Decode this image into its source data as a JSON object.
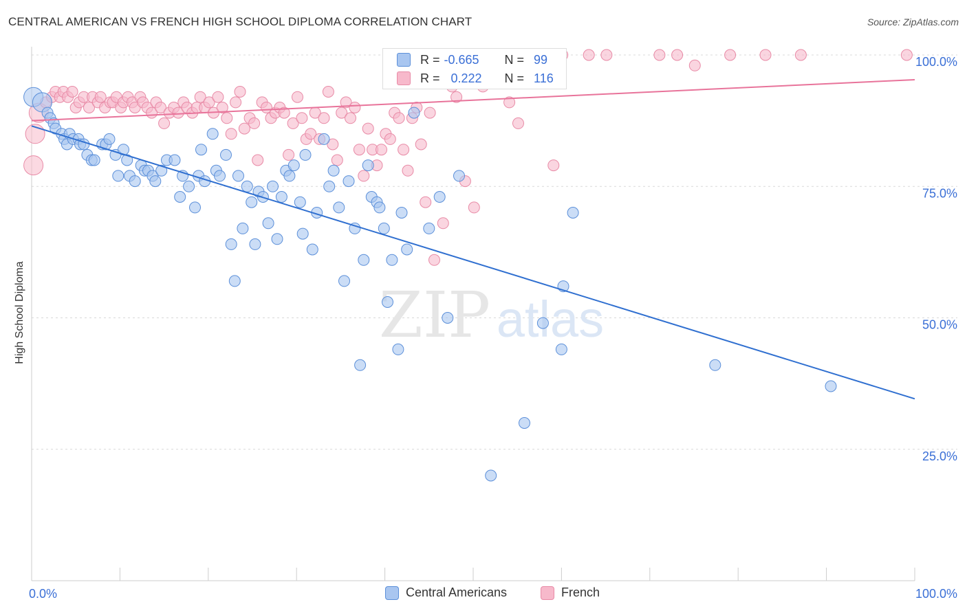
{
  "title": "CENTRAL AMERICAN VS FRENCH HIGH SCHOOL DIPLOMA CORRELATION CHART",
  "source": "Source: ZipAtlas.com",
  "watermark": {
    "zip": "ZIP",
    "atlas": "atlas"
  },
  "colors": {
    "blue_fill": "#a9c6f0",
    "blue_stroke": "#5b8fd9",
    "blue_line": "#2f6fd0",
    "pink_fill": "#f7b9cb",
    "pink_stroke": "#e88aa6",
    "pink_line": "#e8739a",
    "tick_label": "#3a6fd6",
    "grid": "#d8d8d8"
  },
  "stats": {
    "r_label": "R =",
    "n_label": "N =",
    "rows": [
      {
        "series": "Central Americans",
        "r": "-0.665",
        "n": "99"
      },
      {
        "series": "French",
        "r": "0.222",
        "n": "116"
      }
    ]
  },
  "legend": {
    "items": [
      "Central Americans",
      "French"
    ]
  },
  "chart_data": {
    "type": "scatter",
    "title": "CENTRAL AMERICAN VS FRENCH HIGH SCHOOL DIPLOMA CORRELATION CHART",
    "xlabel": "",
    "ylabel": "High School Diploma",
    "xlim": [
      0,
      100
    ],
    "ylim": [
      0,
      105
    ],
    "x_tick_labels": [
      "0.0%",
      "100.0%"
    ],
    "y_ticks": [
      25,
      50,
      75,
      100
    ],
    "y_tick_labels": [
      "25.0%",
      "50.0%",
      "75.0%",
      "100.0%"
    ],
    "grid": true,
    "legend_position": "bottom",
    "series": [
      {
        "name": "Central Americans",
        "r": -0.665,
        "n": 99,
        "trend": {
          "x": [
            0,
            100
          ],
          "y": [
            86.5,
            34.6
          ]
        },
        "points": [
          [
            0.2,
            92
          ],
          [
            1.2,
            91
          ],
          [
            1.8,
            89
          ],
          [
            2.1,
            88
          ],
          [
            2.5,
            87
          ],
          [
            2.7,
            86
          ],
          [
            3.4,
            85
          ],
          [
            3.7,
            84
          ],
          [
            4,
            83
          ],
          [
            4.3,
            85
          ],
          [
            4.7,
            84
          ],
          [
            5.3,
            84
          ],
          [
            5.5,
            83
          ],
          [
            5.9,
            83
          ],
          [
            6.3,
            81
          ],
          [
            6.8,
            80
          ],
          [
            7.1,
            80
          ],
          [
            8,
            83
          ],
          [
            8.4,
            83
          ],
          [
            8.8,
            84
          ],
          [
            9.5,
            81
          ],
          [
            9.8,
            77
          ],
          [
            10.4,
            82
          ],
          [
            10.8,
            80
          ],
          [
            11.1,
            77
          ],
          [
            11.7,
            76
          ],
          [
            12.4,
            79
          ],
          [
            12.8,
            78
          ],
          [
            13.2,
            78
          ],
          [
            13.7,
            77
          ],
          [
            14,
            76
          ],
          [
            14.7,
            78
          ],
          [
            15.3,
            80
          ],
          [
            16.2,
            80
          ],
          [
            16.8,
            73
          ],
          [
            17.1,
            77
          ],
          [
            17.8,
            75
          ],
          [
            18.5,
            71
          ],
          [
            18.9,
            77
          ],
          [
            19.2,
            82
          ],
          [
            19.6,
            76
          ],
          [
            20.5,
            85
          ],
          [
            20.9,
            78
          ],
          [
            21.3,
            77
          ],
          [
            22,
            81
          ],
          [
            22.6,
            64
          ],
          [
            23,
            57
          ],
          [
            23.4,
            77
          ],
          [
            23.9,
            67
          ],
          [
            24.4,
            75
          ],
          [
            24.9,
            72
          ],
          [
            25.3,
            64
          ],
          [
            25.7,
            74
          ],
          [
            26.2,
            73
          ],
          [
            26.8,
            68
          ],
          [
            27.3,
            75
          ],
          [
            27.8,
            65
          ],
          [
            28.3,
            73
          ],
          [
            28.8,
            78
          ],
          [
            29.2,
            77
          ],
          [
            29.7,
            79
          ],
          [
            30.4,
            72
          ],
          [
            30.7,
            66
          ],
          [
            31,
            81
          ],
          [
            31.8,
            63
          ],
          [
            32.3,
            70
          ],
          [
            33.1,
            84
          ],
          [
            33.7,
            75
          ],
          [
            34.2,
            78
          ],
          [
            34.8,
            71
          ],
          [
            35.4,
            57
          ],
          [
            35.9,
            76
          ],
          [
            36.6,
            67
          ],
          [
            37.2,
            41
          ],
          [
            37.6,
            61
          ],
          [
            38.1,
            79
          ],
          [
            38.5,
            73
          ],
          [
            39.1,
            72
          ],
          [
            39.4,
            71
          ],
          [
            39.9,
            67
          ],
          [
            40.3,
            53
          ],
          [
            40.8,
            61
          ],
          [
            41.5,
            44
          ],
          [
            41.9,
            70
          ],
          [
            42.5,
            63
          ],
          [
            43,
            96
          ],
          [
            43.3,
            89
          ],
          [
            45,
            67
          ],
          [
            46.2,
            73
          ],
          [
            47.1,
            50
          ],
          [
            48.4,
            77
          ],
          [
            52,
            20
          ],
          [
            55.8,
            30
          ],
          [
            57.9,
            49
          ],
          [
            60,
            44
          ],
          [
            60.2,
            56
          ],
          [
            61.3,
            70
          ],
          [
            77.4,
            41
          ],
          [
            90.5,
            37
          ]
        ]
      },
      {
        "name": "French",
        "r": 0.222,
        "n": 116,
        "trend": {
          "x": [
            0,
            100
          ],
          "y": [
            87.5,
            95.3
          ]
        },
        "points": [
          [
            0.2,
            79
          ],
          [
            0.4,
            85
          ],
          [
            0.8,
            89
          ],
          [
            1.6,
            91
          ],
          [
            2.3,
            92
          ],
          [
            2.7,
            93
          ],
          [
            3.2,
            92
          ],
          [
            3.6,
            93
          ],
          [
            4.1,
            92
          ],
          [
            4.6,
            93
          ],
          [
            5,
            90
          ],
          [
            5.4,
            91
          ],
          [
            5.9,
            92
          ],
          [
            6.5,
            90
          ],
          [
            6.9,
            92
          ],
          [
            7.5,
            91
          ],
          [
            7.8,
            92
          ],
          [
            8.3,
            90
          ],
          [
            8.9,
            91
          ],
          [
            9.2,
            91
          ],
          [
            9.6,
            92
          ],
          [
            10.1,
            90
          ],
          [
            10.4,
            91
          ],
          [
            10.9,
            92
          ],
          [
            11.4,
            91
          ],
          [
            11.7,
            90
          ],
          [
            12.3,
            92
          ],
          [
            12.6,
            91
          ],
          [
            13.1,
            90
          ],
          [
            13.6,
            89
          ],
          [
            14.1,
            91
          ],
          [
            14.6,
            90
          ],
          [
            15,
            87
          ],
          [
            15.6,
            89
          ],
          [
            16.1,
            90
          ],
          [
            16.6,
            89
          ],
          [
            17.2,
            91
          ],
          [
            17.6,
            90
          ],
          [
            18.2,
            89
          ],
          [
            18.7,
            90
          ],
          [
            19.1,
            92
          ],
          [
            19.6,
            90
          ],
          [
            20.1,
            91
          ],
          [
            20.6,
            89
          ],
          [
            21.1,
            92
          ],
          [
            21.6,
            90
          ],
          [
            22.1,
            88
          ],
          [
            22.6,
            85
          ],
          [
            23.1,
            91
          ],
          [
            23.6,
            93
          ],
          [
            24.1,
            86
          ],
          [
            24.7,
            88
          ],
          [
            25.2,
            87
          ],
          [
            25.6,
            80
          ],
          [
            26.1,
            91
          ],
          [
            26.6,
            90
          ],
          [
            27.1,
            88
          ],
          [
            27.6,
            89
          ],
          [
            28.1,
            90
          ],
          [
            28.6,
            89
          ],
          [
            29.1,
            81
          ],
          [
            29.6,
            87
          ],
          [
            30.1,
            92
          ],
          [
            30.6,
            88
          ],
          [
            31.1,
            84
          ],
          [
            31.6,
            85
          ],
          [
            32.1,
            89
          ],
          [
            32.6,
            84
          ],
          [
            33.1,
            88
          ],
          [
            33.6,
            93
          ],
          [
            34.1,
            83
          ],
          [
            34.6,
            80
          ],
          [
            35.1,
            89
          ],
          [
            35.6,
            91
          ],
          [
            36.1,
            88
          ],
          [
            36.6,
            90
          ],
          [
            37.1,
            82
          ],
          [
            37.6,
            77
          ],
          [
            38.1,
            86
          ],
          [
            38.6,
            82
          ],
          [
            39.1,
            79
          ],
          [
            39.6,
            82
          ],
          [
            40.1,
            85
          ],
          [
            40.6,
            84
          ],
          [
            41.1,
            89
          ],
          [
            41.6,
            88
          ],
          [
            42.1,
            82
          ],
          [
            42.6,
            78
          ],
          [
            43.1,
            88
          ],
          [
            43.6,
            90
          ],
          [
            44.1,
            83
          ],
          [
            44.6,
            72
          ],
          [
            45.1,
            89
          ],
          [
            45.6,
            61
          ],
          [
            46.1,
            95
          ],
          [
            46.6,
            68
          ],
          [
            47.1,
            100
          ],
          [
            47.6,
            94
          ],
          [
            48.1,
            92
          ],
          [
            49.1,
            76
          ],
          [
            50.1,
            71
          ],
          [
            51.1,
            94
          ],
          [
            53.1,
            98
          ],
          [
            54.1,
            91
          ],
          [
            55.1,
            87
          ],
          [
            59.1,
            79
          ],
          [
            60.1,
            100
          ],
          [
            63.1,
            100
          ],
          [
            65.1,
            100
          ],
          [
            71.1,
            100
          ],
          [
            73.1,
            100
          ],
          [
            75.1,
            98
          ],
          [
            79.1,
            100
          ],
          [
            83.1,
            100
          ],
          [
            87.1,
            100
          ],
          [
            99.1,
            100
          ]
        ]
      }
    ]
  }
}
